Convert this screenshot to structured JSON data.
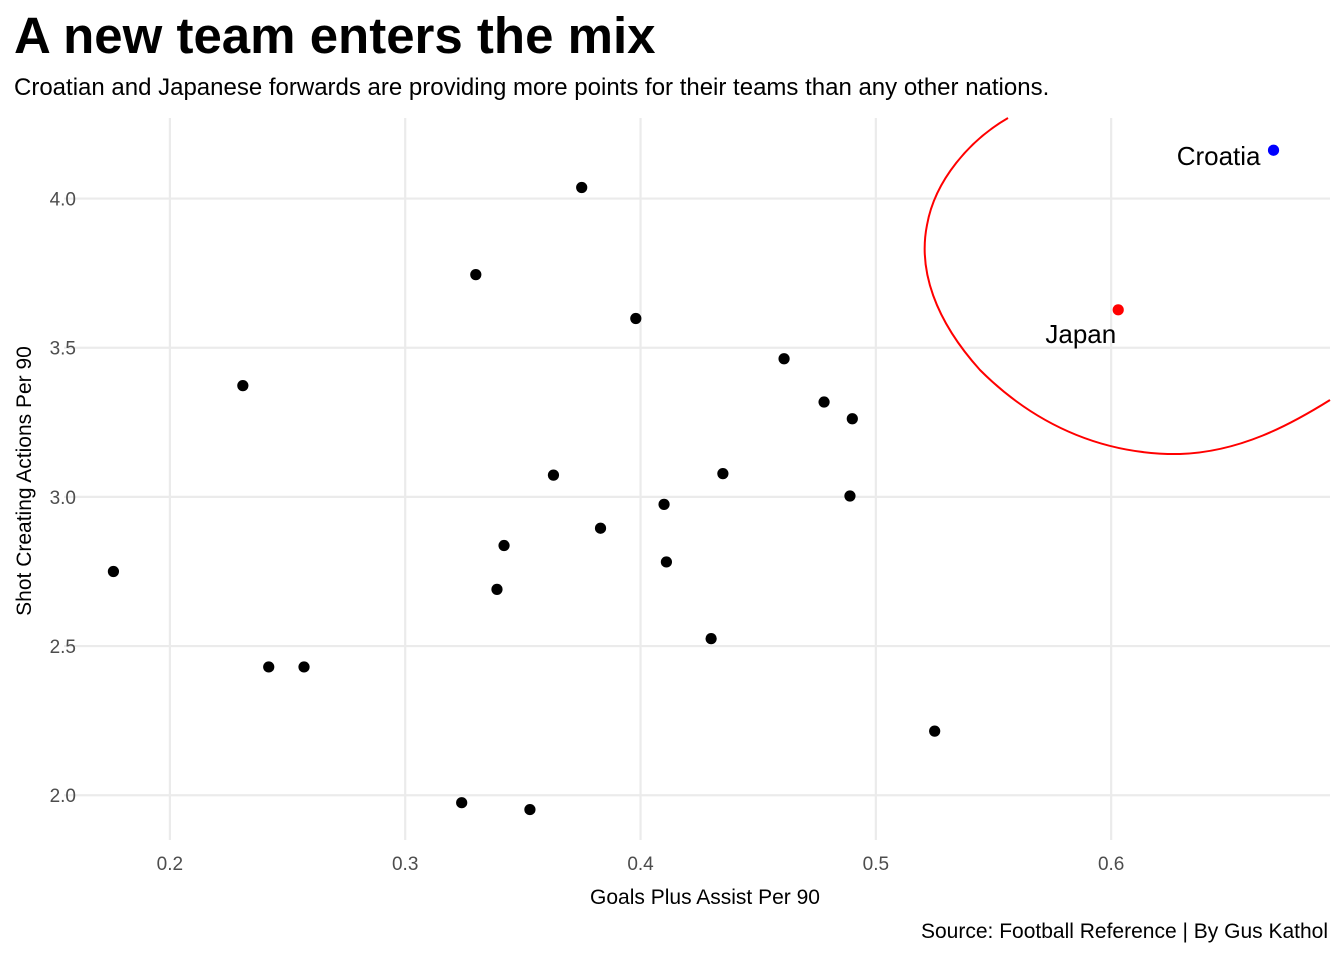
{
  "title": "A new team enters the mix",
  "subtitle": "Croatian and Japanese forwards are providing more points for their teams than any other nations.",
  "caption": "Source: Football Reference | By Gus Kathol",
  "chart_data": {
    "type": "scatter",
    "xlabel": "Goals Plus Assist Per 90",
    "ylabel": "Shot Creating Actions Per 90",
    "xlim": [
      0.155,
      0.693
    ],
    "ylim": [
      1.85,
      4.27
    ],
    "x_ticks": [
      0.2,
      0.3,
      0.4,
      0.5,
      0.6
    ],
    "y_ticks": [
      2.0,
      2.5,
      3.0,
      3.5,
      4.0
    ],
    "x_tick_labels": [
      "0.2",
      "0.3",
      "0.4",
      "0.5",
      "0.6"
    ],
    "y_tick_labels": [
      "2.0",
      "2.5",
      "3.0",
      "3.5",
      "4.0"
    ],
    "grid": true,
    "points": [
      {
        "x": 0.176,
        "y": 2.75,
        "color": "#000000"
      },
      {
        "x": 0.231,
        "y": 3.373,
        "color": "#000000"
      },
      {
        "x": 0.242,
        "y": 2.43,
        "color": "#000000"
      },
      {
        "x": 0.257,
        "y": 2.43,
        "color": "#000000"
      },
      {
        "x": 0.324,
        "y": 1.975,
        "color": "#000000"
      },
      {
        "x": 0.33,
        "y": 3.745,
        "color": "#000000"
      },
      {
        "x": 0.339,
        "y": 2.69,
        "color": "#000000"
      },
      {
        "x": 0.342,
        "y": 2.837,
        "color": "#000000"
      },
      {
        "x": 0.353,
        "y": 1.952,
        "color": "#000000"
      },
      {
        "x": 0.363,
        "y": 3.073,
        "color": "#000000"
      },
      {
        "x": 0.375,
        "y": 4.037,
        "color": "#000000"
      },
      {
        "x": 0.383,
        "y": 2.895,
        "color": "#000000"
      },
      {
        "x": 0.398,
        "y": 3.598,
        "color": "#000000"
      },
      {
        "x": 0.41,
        "y": 2.975,
        "color": "#000000"
      },
      {
        "x": 0.411,
        "y": 2.782,
        "color": "#000000"
      },
      {
        "x": 0.43,
        "y": 2.525,
        "color": "#000000"
      },
      {
        "x": 0.435,
        "y": 3.078,
        "color": "#000000"
      },
      {
        "x": 0.461,
        "y": 3.463,
        "color": "#000000"
      },
      {
        "x": 0.478,
        "y": 3.318,
        "color": "#000000"
      },
      {
        "x": 0.489,
        "y": 3.003,
        "color": "#000000"
      },
      {
        "x": 0.49,
        "y": 3.262,
        "color": "#000000"
      },
      {
        "x": 0.525,
        "y": 2.215,
        "color": "#000000"
      },
      {
        "x": 0.603,
        "y": 3.627,
        "color": "#ff0000"
      },
      {
        "x": 0.669,
        "y": 4.162,
        "color": "#0000ff"
      }
    ],
    "annotations": [
      {
        "text": "Croatia",
        "x": 0.669,
        "y": 4.162
      },
      {
        "text": "Japan",
        "x": 0.603,
        "y": 3.627
      }
    ],
    "highlight_color": "#ff0000"
  }
}
